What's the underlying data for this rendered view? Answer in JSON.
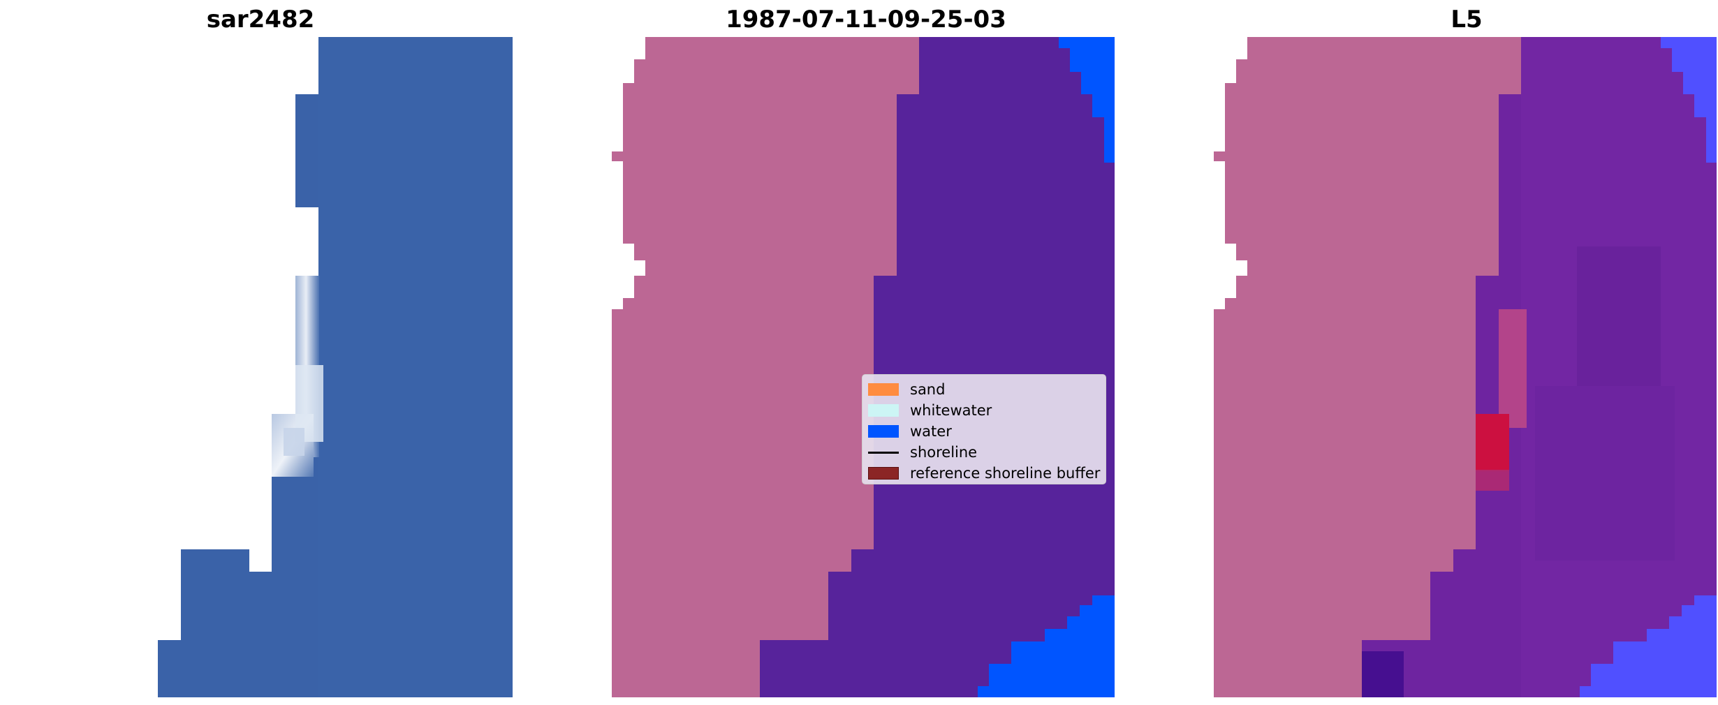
{
  "panels": [
    {
      "title": "sar2482",
      "description": "satellite RGB image"
    },
    {
      "title": "1987-07-11-09-25-03",
      "description": "classified image"
    },
    {
      "title": "L5",
      "description": "classified overlay"
    }
  ],
  "legend": {
    "items": [
      {
        "label": "sand",
        "color": "#ff8c40",
        "kind": "patch"
      },
      {
        "label": "whitewater",
        "color": "#ccf5f5",
        "kind": "patch"
      },
      {
        "label": "water",
        "color": "#0055ff",
        "kind": "patch"
      },
      {
        "label": "shoreline",
        "color": "#000000",
        "kind": "line"
      },
      {
        "label": "reference shoreline buffer",
        "color": "#8b2525",
        "kind": "patch"
      }
    ]
  },
  "colors": {
    "satellite_water": "#3a62a8",
    "classified_land": "#bc6794",
    "classified_water": "#57239b",
    "bright_water": "#0055ff",
    "overlay_red": "#cc1040",
    "overlay_violet": "#6e24a0"
  }
}
